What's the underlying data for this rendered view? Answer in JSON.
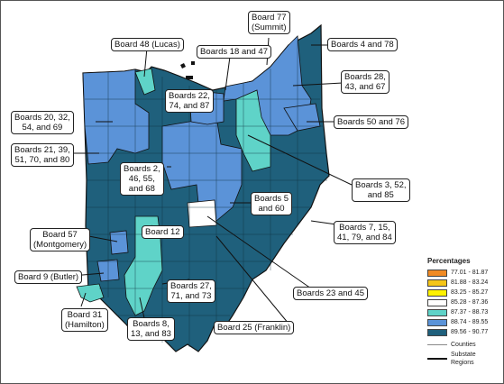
{
  "labels": {
    "board77": "Board 77\n(Summit)",
    "board48": "Board 48 (Lucas)",
    "boards18_47": "Boards 18 and 47",
    "boards4_78": "Boards 4 and 78",
    "boards28_43_67": "Boards 28,\n43, and 67",
    "boards22_74_87": "Boards 22,\n74, and 87",
    "boards20_32_54_69": "Boards 20, 32,\n54, and 69",
    "boards50_76": "Boards 50 and 76",
    "boards21_39_51_70_80": "Boards 21, 39,\n51, 70, and 80",
    "boards2_46_55_68": "Boards 2,\n46, 55,\nand 68",
    "boards3_52_85": "Boards 3, 52,\nand 85",
    "boards5_60": "Boards 5\nand 60",
    "board57": "Board 57\n(Montgomery)",
    "board12": "Board 12",
    "boards7_15_41_79_84": "Boards 7, 15,\n41, 79, and 84",
    "board9": "Board 9 (Butler)",
    "boards23_45": "Boards 23 and 45",
    "boards27_71_73": "Boards 27,\n71, and 73",
    "board31": "Board 31\n(Hamilton)",
    "board25": "Board 25 (Franklin)",
    "boards8_13_83": "Boards 8,\n13, and 83"
  },
  "legend": {
    "title": "Percentages",
    "ranges": [
      {
        "label": "77.01 - 81.87",
        "color": "#f08a24"
      },
      {
        "label": "81.88 - 83.24",
        "color": "#f5c518"
      },
      {
        "label": "83.25 - 85.27",
        "color": "#fff200"
      },
      {
        "label": "85.28 - 87.36",
        "color": "#ffffff"
      },
      {
        "label": "87.37 - 88.73",
        "color": "#5fd3c8"
      },
      {
        "label": "88.74 - 89.55",
        "color": "#5b93d8"
      },
      {
        "label": "89.56 - 90.77",
        "color": "#1f607c"
      }
    ],
    "counties": "Counties",
    "substate": "Substate\nRegions"
  }
}
